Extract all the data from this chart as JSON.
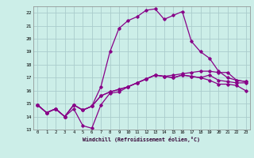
{
  "xlabel": "Windchill (Refroidissement éolien,°C)",
  "xlim": [
    -0.5,
    23.5
  ],
  "ylim": [
    13,
    22.5
  ],
  "xticks": [
    0,
    1,
    2,
    3,
    4,
    5,
    6,
    7,
    8,
    9,
    10,
    11,
    12,
    13,
    14,
    15,
    16,
    17,
    18,
    19,
    20,
    21,
    22,
    23
  ],
  "yticks": [
    13,
    14,
    15,
    16,
    17,
    18,
    19,
    20,
    21,
    22
  ],
  "bg_color": "#cceee8",
  "grid_color": "#aacccc",
  "line_color": "#880088",
  "line_width": 0.9,
  "marker": "D",
  "marker_size": 1.8,
  "series": [
    [
      14.9,
      14.3,
      14.6,
      14.0,
      14.6,
      13.3,
      13.1,
      14.9,
      15.8,
      15.9,
      16.3,
      16.6,
      16.9,
      17.2,
      17.1,
      17.0,
      17.2,
      17.1,
      17.0,
      17.2,
      16.8,
      16.7,
      16.6,
      16.6
    ],
    [
      14.9,
      14.3,
      14.6,
      14.0,
      14.9,
      14.5,
      14.8,
      16.3,
      19.0,
      20.8,
      21.4,
      21.7,
      22.2,
      22.3,
      21.5,
      21.8,
      22.1,
      19.8,
      19.0,
      18.5,
      17.5,
      17.0,
      16.8,
      16.7
    ],
    [
      14.9,
      14.3,
      14.6,
      14.0,
      14.9,
      14.5,
      14.8,
      15.6,
      15.9,
      16.1,
      16.3,
      16.6,
      16.9,
      17.2,
      17.1,
      17.0,
      17.2,
      17.1,
      17.0,
      16.8,
      16.5,
      16.5,
      16.4,
      16.0
    ],
    [
      14.9,
      14.3,
      14.6,
      14.0,
      14.9,
      14.5,
      14.8,
      15.6,
      15.9,
      16.1,
      16.3,
      16.6,
      16.9,
      17.2,
      17.1,
      17.2,
      17.3,
      17.4,
      17.5,
      17.5,
      17.4,
      17.4,
      16.8,
      16.7
    ]
  ]
}
